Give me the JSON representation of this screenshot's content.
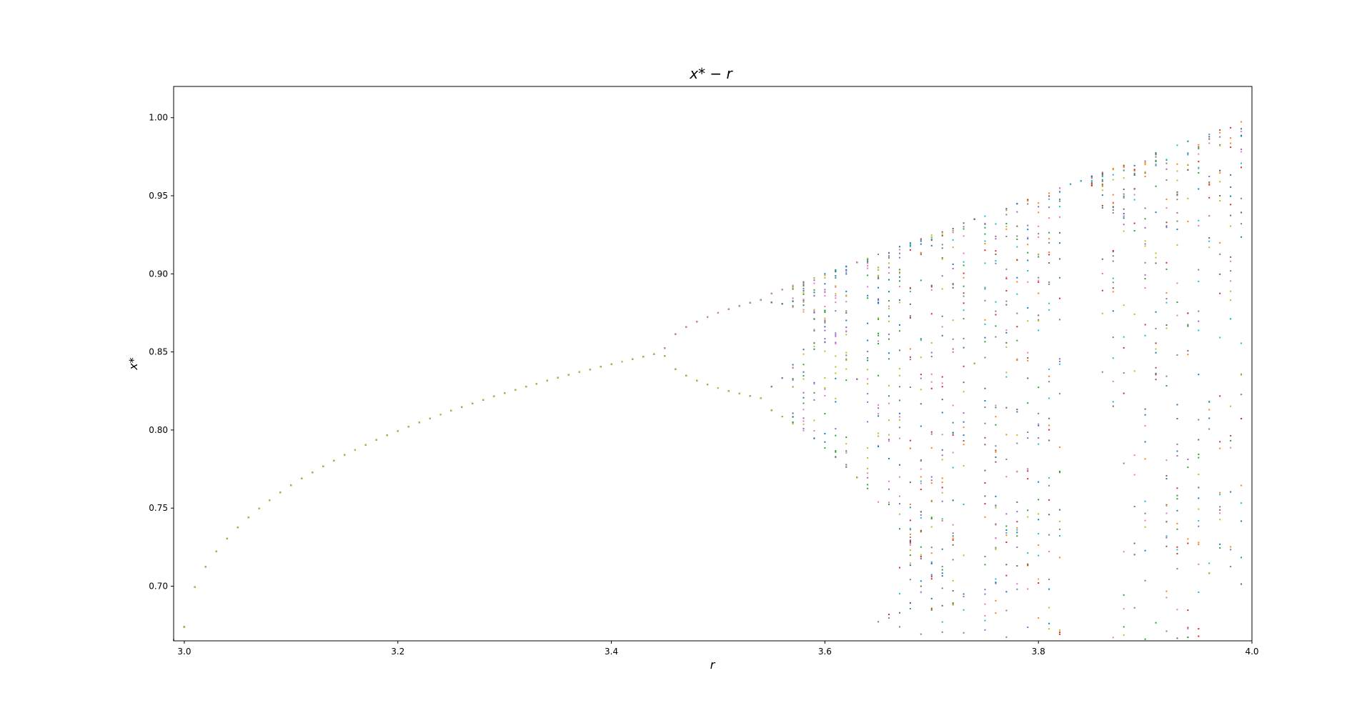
{
  "chart_data": {
    "type": "scatter",
    "title": "x* − r",
    "xlabel": "r",
    "ylabel": "x*",
    "xlim": [
      2.99,
      4.0
    ],
    "ylim": [
      0.665,
      1.02
    ],
    "grid": false,
    "legend": "none",
    "x_ticks": [
      3.0,
      3.2,
      3.4,
      3.6,
      3.8,
      4.0
    ],
    "x_tick_labels": [
      "3.0",
      "3.2",
      "3.4",
      "3.6",
      "3.8",
      "4.0"
    ],
    "y_ticks": [
      0.7,
      0.75,
      0.8,
      0.85,
      0.9,
      0.95,
      1.0
    ],
    "y_tick_labels": [
      "0.70",
      "0.75",
      "0.80",
      "0.85",
      "0.90",
      "0.95",
      "1.00"
    ],
    "palette": [
      "#1f77b4",
      "#ff7f0e",
      "#2ca02c",
      "#d62728",
      "#9467bd",
      "#8c564b",
      "#e377c2",
      "#7f7f7f",
      "#bcbd22",
      "#17becf"
    ],
    "generator": {
      "map": "logistic",
      "r_start": 2.99,
      "r_end": 4.0,
      "r_step": 0.01,
      "x0": 0.5,
      "transient_iterations": 1000,
      "plotted_iterations": 60
    }
  }
}
